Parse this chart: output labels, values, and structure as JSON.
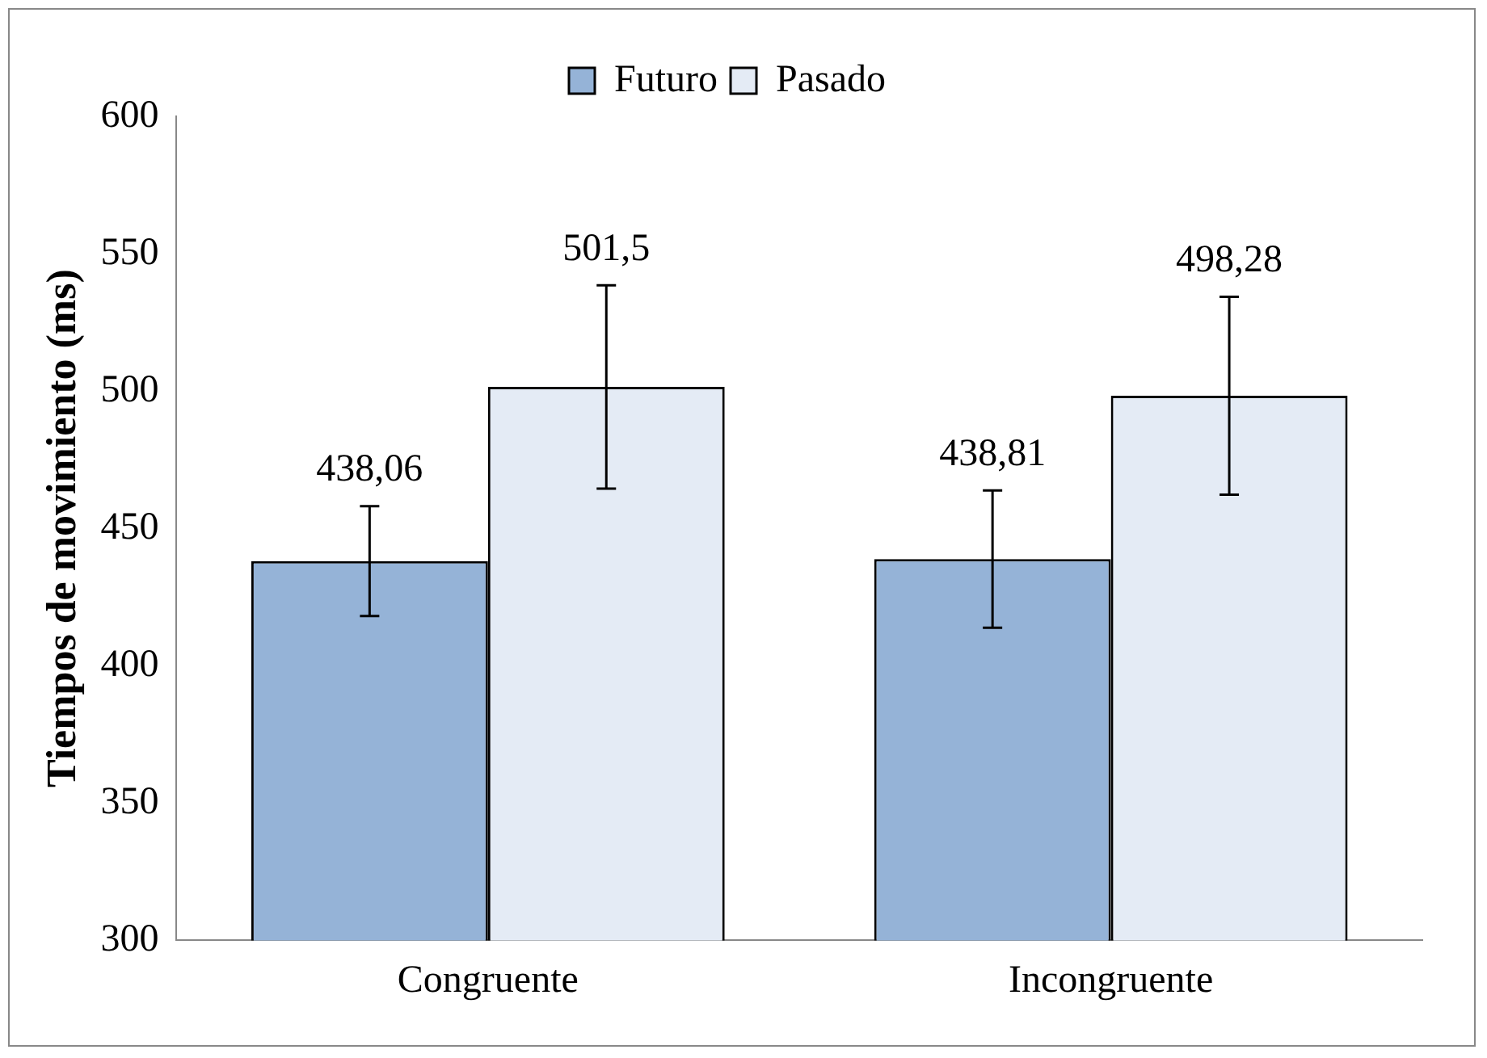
{
  "chart_data": {
    "type": "bar",
    "ylabel": "Tiempos de movimiento (ms)",
    "categories": [
      "Congruente",
      "Incongruente"
    ],
    "series": [
      {
        "name": "Futuro",
        "color": "#95b3d7",
        "values": [
          438.06,
          438.81
        ],
        "errors": [
          20,
          25
        ],
        "value_labels": [
          "438,06",
          "438,81"
        ]
      },
      {
        "name": "Pasado",
        "color": "#e4ebf5",
        "values": [
          501.5,
          498.28
        ],
        "errors": [
          37,
          36
        ],
        "value_labels": [
          "501,5",
          "498,28"
        ]
      }
    ],
    "ylim": [
      300,
      600
    ],
    "yticks": [
      300,
      350,
      400,
      450,
      500,
      550,
      600
    ],
    "grid": false,
    "legend": "top"
  }
}
